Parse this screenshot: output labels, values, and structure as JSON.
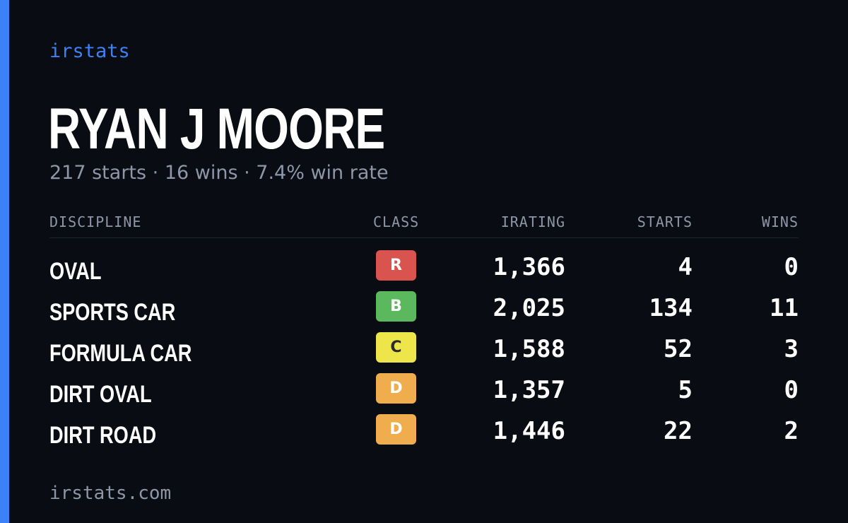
{
  "brand": "irstats",
  "driver": {
    "name": "RYAN J MOORE",
    "summary": "217 starts · 16 wins · 7.4% win rate"
  },
  "table": {
    "headers": {
      "discipline": "DISCIPLINE",
      "class": "CLASS",
      "irating": "IRATING",
      "starts": "STARTS",
      "wins": "WINS"
    },
    "rows": [
      {
        "discipline": "OVAL",
        "class": "R",
        "class_color": "#d9534f",
        "class_text_color": "#ffffff",
        "irating": "1,366",
        "starts": "4",
        "wins": "0"
      },
      {
        "discipline": "SPORTS CAR",
        "class": "B",
        "class_color": "#5cb85c",
        "class_text_color": "#ffffff",
        "irating": "2,025",
        "starts": "134",
        "wins": "11"
      },
      {
        "discipline": "FORMULA CAR",
        "class": "C",
        "class_color": "#ede54a",
        "class_text_color": "#2b2b2b",
        "irating": "1,588",
        "starts": "52",
        "wins": "3"
      },
      {
        "discipline": "DIRT OVAL",
        "class": "D",
        "class_color": "#f0ad4e",
        "class_text_color": "#ffffff",
        "irating": "1,357",
        "starts": "5",
        "wins": "0"
      },
      {
        "discipline": "DIRT ROAD",
        "class": "D",
        "class_color": "#f0ad4e",
        "class_text_color": "#ffffff",
        "irating": "1,446",
        "starts": "22",
        "wins": "2"
      }
    ]
  },
  "footer": "irstats.com",
  "colors": {
    "accent": "#3b82f6",
    "background": "#0a0c13",
    "muted_text": "#8d97a8"
  }
}
